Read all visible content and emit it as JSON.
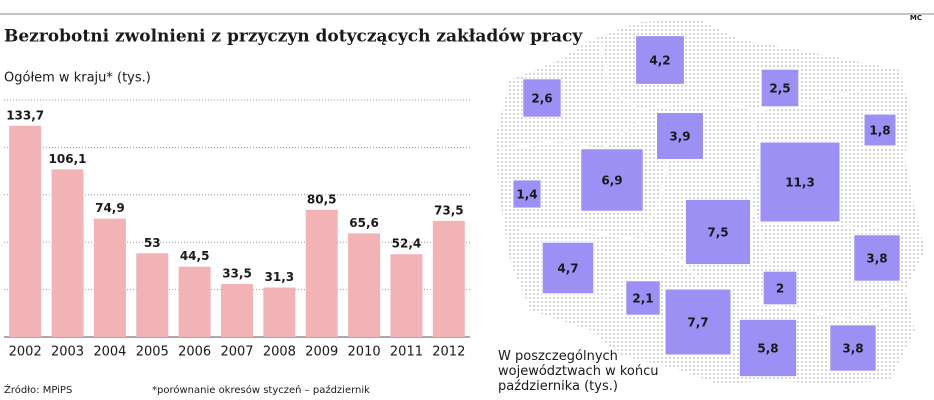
{
  "title": "Bezrobotni zwolnieni z przyczyn dotyczących zakładów pracy",
  "credit": "MC",
  "source": "Źródło: MPiPS",
  "footnote": "*porównanie okresów styczeń – październik",
  "chart_data": [
    {
      "type": "bar",
      "subtitle": "Ogółem w kraju* (tys.)",
      "categories": [
        "2002",
        "2003",
        "2004",
        "2005",
        "2006",
        "2007",
        "2008",
        "2009",
        "2010",
        "2011",
        "2012"
      ],
      "values": [
        133.7,
        106.1,
        74.9,
        53,
        44.5,
        33.5,
        31.3,
        80.5,
        65.6,
        52.4,
        73.5
      ],
      "value_labels": [
        "133,7",
        "106,1",
        "74,9",
        "53",
        "44,5",
        "33,5",
        "31,3",
        "80,5",
        "65,6",
        "52,4",
        "73,5"
      ],
      "color": "#f2b3b6",
      "ylim": [
        0,
        150
      ],
      "yticks": [
        30,
        60,
        90,
        120,
        150
      ],
      "grid": true,
      "tick_labels": false
    },
    {
      "type": "map",
      "title": "W poszczególnych województwach w końcu października (tys.)",
      "values": [
        4.2,
        2.5,
        2.6,
        3.9,
        1.8,
        1.4,
        6.9,
        11.3,
        7.5,
        4.7,
        3.8,
        2,
        2.1,
        7.7,
        5.8,
        3.8
      ],
      "value_labels": [
        "4,2",
        "2,5",
        "2,6",
        "3,9",
        "1,8",
        "1,4",
        "6,9",
        "11,3",
        "7,5",
        "4,7",
        "3,8",
        "2",
        "2,1",
        "7,7",
        "5,8",
        "3,8"
      ],
      "color": "#9d90f5"
    }
  ]
}
